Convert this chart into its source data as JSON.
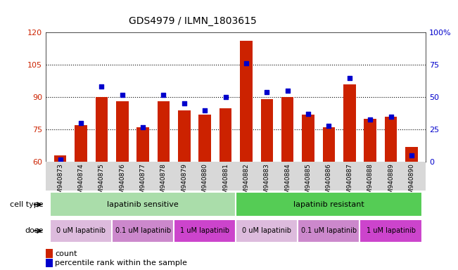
{
  "title": "GDS4979 / ILMN_1803615",
  "samples": [
    "GSM940873",
    "GSM940874",
    "GSM940875",
    "GSM940876",
    "GSM940877",
    "GSM940878",
    "GSM940879",
    "GSM940880",
    "GSM940881",
    "GSM940882",
    "GSM940883",
    "GSM940884",
    "GSM940885",
    "GSM940886",
    "GSM940887",
    "GSM940888",
    "GSM940889",
    "GSM940890"
  ],
  "counts": [
    63,
    77,
    90,
    88,
    76,
    88,
    84,
    82,
    85,
    116,
    89,
    90,
    82,
    76,
    96,
    80,
    81,
    67
  ],
  "percentile_ranks": [
    2,
    30,
    58,
    52,
    27,
    52,
    45,
    40,
    50,
    76,
    54,
    55,
    37,
    28,
    65,
    33,
    35,
    5
  ],
  "ylim_left": [
    60,
    120
  ],
  "ylim_right": [
    0,
    100
  ],
  "yticks_left": [
    60,
    75,
    90,
    105,
    120
  ],
  "yticks_right": [
    0,
    25,
    50,
    75,
    100
  ],
  "bar_color": "#CC2200",
  "dot_color": "#0000CC",
  "cell_type_groups": [
    {
      "label": "lapatinib sensitive",
      "start": 0,
      "end": 9,
      "color": "#aaddaa"
    },
    {
      "label": "lapatinib resistant",
      "start": 9,
      "end": 18,
      "color": "#55cc55"
    }
  ],
  "dose_groups": [
    {
      "label": "0 uM lapatinib",
      "start": 0,
      "end": 3,
      "color": "#ddbbdd"
    },
    {
      "label": "0.1 uM lapatinib",
      "start": 3,
      "end": 6,
      "color": "#cc88cc"
    },
    {
      "label": "1 uM lapatinib",
      "start": 6,
      "end": 9,
      "color": "#cc44cc"
    },
    {
      "label": "0 uM lapatinib",
      "start": 9,
      "end": 12,
      "color": "#ddbbdd"
    },
    {
      "label": "0.1 uM lapatinib",
      "start": 12,
      "end": 15,
      "color": "#cc88cc"
    },
    {
      "label": "1 uM lapatinib",
      "start": 15,
      "end": 18,
      "color": "#cc44cc"
    }
  ],
  "legend_count_label": "count",
  "legend_percentile_label": "percentile rank within the sample",
  "cell_type_label": "cell type",
  "dose_label": "dose"
}
